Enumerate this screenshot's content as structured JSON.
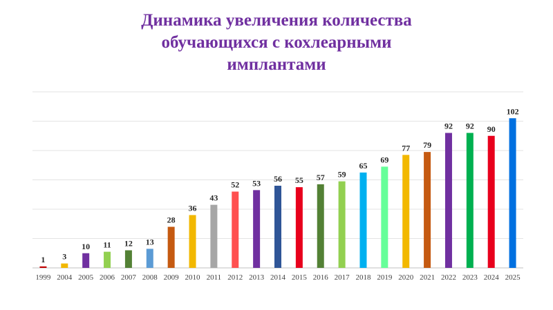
{
  "chart_data": {
    "type": "bar",
    "title_lines": [
      "Динамика увеличения количества",
      "обучающихся с кохлеарными",
      "имплантами"
    ],
    "xlabel": "",
    "ylabel": "",
    "ylim": [
      0,
      120
    ],
    "grid": true,
    "legend": "none",
    "categories": [
      "1999",
      "2004",
      "2005",
      "2006",
      "2007",
      "2008",
      "2009",
      "2010",
      "2011",
      "2012",
      "2013",
      "2014",
      "2015",
      "2016",
      "2017",
      "2018",
      "2019",
      "2020",
      "2021",
      "2022",
      "2023",
      "2024",
      "2025"
    ],
    "values": [
      1,
      3,
      10,
      11,
      12,
      13,
      28,
      36,
      43,
      52,
      53,
      56,
      55,
      57,
      59,
      65,
      69,
      77,
      79,
      92,
      92,
      90,
      102
    ],
    "colors": [
      "#c00000",
      "#f2b800",
      "#7030a0",
      "#92d050",
      "#538135",
      "#5b9bd5",
      "#c55a11",
      "#f2b800",
      "#a6a6a6",
      "#ff5050",
      "#7030a0",
      "#2f5597",
      "#e8001c",
      "#538135",
      "#92d050",
      "#00b0f0",
      "#66ff99",
      "#f2b800",
      "#c55a11",
      "#7030a0",
      "#00b050",
      "#e8001c",
      "#0070e0"
    ]
  }
}
